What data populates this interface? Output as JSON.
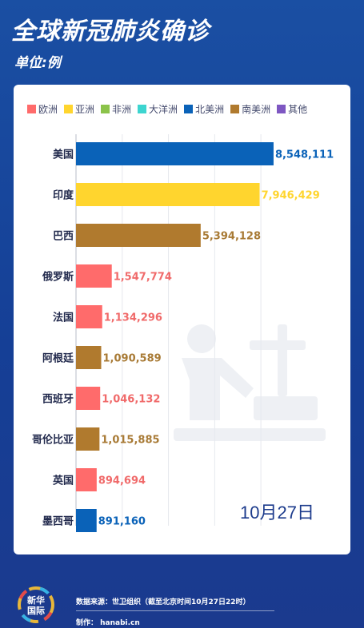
{
  "header": {
    "title": "全球新冠肺炎确诊",
    "unit": "单位:例"
  },
  "legend": [
    {
      "label": "欧洲",
      "color": "#ff6b6b"
    },
    {
      "label": "亚洲",
      "color": "#ffd52e"
    },
    {
      "label": "非洲",
      "color": "#8bc34a"
    },
    {
      "label": "大洋洲",
      "color": "#3dd5d0"
    },
    {
      "label": "北美洲",
      "color": "#0a62b8"
    },
    {
      "label": "南美洲",
      "color": "#b07a2e"
    },
    {
      "label": "其他",
      "color": "#7e57c2"
    }
  ],
  "date_label": "10月27日",
  "chart_data": {
    "type": "bar",
    "orientation": "horizontal",
    "title": "全球新冠肺炎确诊",
    "subtitle": "单位:例",
    "categories": [
      "美国",
      "印度",
      "巴西",
      "俄罗斯",
      "法国",
      "阿根廷",
      "西班牙",
      "哥伦比亚",
      "英国",
      "墨西哥"
    ],
    "values": [
      8548111,
      7946429,
      5394128,
      1547774,
      1134296,
      1090589,
      1046132,
      1015885,
      894694,
      891160
    ],
    "value_labels": [
      "8,548,111",
      "7,946,429",
      "5,394,128",
      "1,547,774",
      "1,134,296",
      "1,090,589",
      "1,046,132",
      "1,015,885",
      "894,694",
      "891,160"
    ],
    "regions": [
      "北美洲",
      "亚洲",
      "南美洲",
      "欧洲",
      "欧洲",
      "南美洲",
      "欧洲",
      "南美洲",
      "欧洲",
      "北美洲"
    ],
    "label_colors": {
      "北美洲": "#0a62b8",
      "亚洲": "#ffd52e",
      "南美洲": "#a87a35",
      "欧洲": "#f06a6a"
    },
    "xlim": [
      0,
      9000000
    ],
    "grid": true,
    "legend_position": "top"
  },
  "footer": {
    "source": "数据来源：世卫组织（截至北京时间10月27日22时）",
    "maker": "制作：  hanabi.cn",
    "logo_line1": "新华",
    "logo_line2": "国际"
  }
}
